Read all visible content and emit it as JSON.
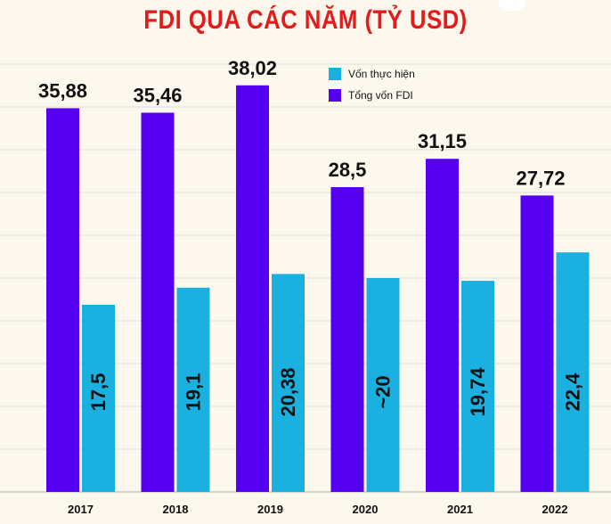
{
  "chart_data": {
    "type": "bar",
    "title": "FDI QUA CÁC NĂM (TỶ USD)",
    "categories": [
      "2017",
      "2018",
      "2019",
      "2020",
      "2021",
      "2022"
    ],
    "series": [
      {
        "name": "Tổng vốn FDI",
        "color": "#5500ee",
        "values": [
          35.88,
          35.46,
          38.02,
          28.5,
          31.15,
          27.72
        ],
        "labels": [
          "35,88",
          "35,46",
          "38,02",
          "28,5",
          "31,15",
          "27,72"
        ]
      },
      {
        "name": "Vốn thực hiện",
        "color": "#1ab0e0",
        "values": [
          17.5,
          19.1,
          20.38,
          20,
          19.74,
          22.4
        ],
        "labels": [
          "17,5",
          "19,1",
          "20,38",
          "~20",
          "19,74",
          "22,4"
        ]
      }
    ],
    "legend_order": [
      1,
      0
    ],
    "ylim": [
      0,
      40
    ],
    "xlabel": "",
    "ylabel": "",
    "grid": true,
    "legend_position": "top-center"
  },
  "colors": {
    "title": "#e01c1c",
    "background": "#fdf8ee",
    "grid": "#dddddd",
    "text": "#111111"
  }
}
